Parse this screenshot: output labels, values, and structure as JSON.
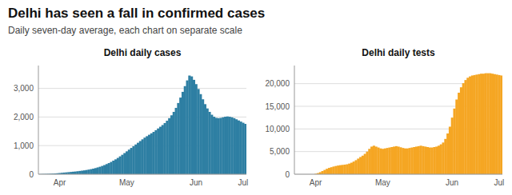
{
  "title": "Delhi has seen a fall in confirmed cases",
  "subtitle": "Daily seven-day average, each chart on separate scale",
  "chart_data": [
    {
      "type": "bar",
      "title": "Delhi daily cases",
      "color": "#2e7fa3",
      "grid": true,
      "categories": [
        null,
        null,
        null,
        null,
        null,
        null,
        null,
        null,
        null,
        "Apr",
        null,
        null,
        null,
        null,
        null,
        null,
        null,
        null,
        null,
        null,
        null,
        null,
        null,
        null,
        null,
        null,
        null,
        null,
        null,
        null,
        null,
        null,
        null,
        null,
        null,
        null,
        null,
        null,
        null,
        "May",
        null,
        null,
        null,
        null,
        null,
        null,
        null,
        null,
        null,
        null,
        null,
        null,
        null,
        null,
        null,
        null,
        null,
        null,
        null,
        null,
        null,
        null,
        null,
        null,
        null,
        null,
        null,
        null,
        null,
        null,
        "Jun",
        null,
        null,
        null,
        null,
        null,
        null,
        null,
        null,
        null,
        null,
        null,
        null,
        null,
        null,
        null,
        null,
        null,
        null,
        null,
        null,
        "Jul",
        null
      ],
      "values": [
        5,
        8,
        10,
        12,
        15,
        18,
        22,
        28,
        35,
        42,
        50,
        58,
        65,
        72,
        80,
        88,
        95,
        105,
        115,
        125,
        135,
        148,
        162,
        178,
        195,
        215,
        238,
        262,
        290,
        320,
        355,
        390,
        430,
        475,
        520,
        570,
        625,
        680,
        740,
        800,
        860,
        920,
        980,
        1040,
        1100,
        1160,
        1220,
        1280,
        1330,
        1380,
        1430,
        1480,
        1540,
        1600,
        1660,
        1720,
        1790,
        1870,
        1960,
        2060,
        2180,
        2320,
        2490,
        2680,
        2880,
        3080,
        3280,
        3450,
        3420,
        3300,
        3150,
        2980,
        2800,
        2620,
        2450,
        2300,
        2180,
        2080,
        2010,
        1970,
        1960,
        1970,
        1990,
        2010,
        2020,
        2010,
        1990,
        1960,
        1920,
        1880,
        1840,
        1800,
        1760
      ],
      "ylim": [
        0,
        3800
      ],
      "yticks": [
        0,
        {
          "value": 1000,
          "label": "1,000"
        },
        {
          "value": 2000,
          "label": "2,000"
        },
        {
          "value": 3000,
          "label": "3,000"
        }
      ]
    },
    {
      "type": "bar",
      "title": "Delhi daily tests",
      "color": "#f5a623",
      "grid": true,
      "categories": [
        null,
        null,
        null,
        null,
        null,
        null,
        null,
        null,
        null,
        "Apr",
        null,
        null,
        null,
        null,
        null,
        null,
        null,
        null,
        null,
        null,
        null,
        null,
        null,
        null,
        null,
        null,
        null,
        null,
        null,
        null,
        null,
        null,
        null,
        null,
        null,
        null,
        null,
        null,
        null,
        "May",
        null,
        null,
        null,
        null,
        null,
        null,
        null,
        null,
        null,
        null,
        null,
        null,
        null,
        null,
        null,
        null,
        null,
        null,
        null,
        null,
        null,
        null,
        null,
        null,
        null,
        null,
        null,
        null,
        null,
        null,
        "Jun",
        null,
        null,
        null,
        null,
        null,
        null,
        null,
        null,
        null,
        null,
        null,
        null,
        null,
        null,
        null,
        null,
        null,
        null,
        null,
        null,
        "Jul",
        null
      ],
      "values": [
        0,
        0,
        0,
        0,
        0,
        0,
        0,
        0,
        0,
        100,
        250,
        450,
        700,
        950,
        1200,
        1400,
        1550,
        1700,
        1820,
        1920,
        2000,
        2060,
        2120,
        2200,
        2350,
        2550,
        2800,
        3100,
        3450,
        3800,
        4100,
        4500,
        5000,
        5600,
        6100,
        6300,
        6100,
        5900,
        5700,
        5600,
        5700,
        5800,
        5900,
        6000,
        6100,
        6200,
        6100,
        5950,
        5800,
        5700,
        5700,
        5800,
        5900,
        6000,
        6100,
        6200,
        6300,
        6200,
        6100,
        6000,
        5900,
        5900,
        6000,
        6100,
        6300,
        6600,
        7000,
        7800,
        9000,
        10500,
        12500,
        14500,
        16500,
        18000,
        19200,
        20100,
        20800,
        21300,
        21600,
        21800,
        21900,
        22000,
        22100,
        22200,
        22200,
        22300,
        22300,
        22300,
        22200,
        22100,
        22000,
        21900,
        21800
      ],
      "ylim": [
        0,
        24000
      ],
      "yticks": [
        0,
        {
          "value": 5000,
          "label": "5,000"
        },
        {
          "value": 10000,
          "label": "10,000"
        },
        {
          "value": 15000,
          "label": "15,000"
        },
        {
          "value": 20000,
          "label": "20,000"
        }
      ]
    }
  ]
}
